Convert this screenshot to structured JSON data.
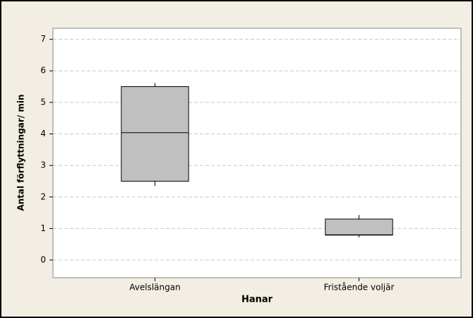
{
  "chart_data": {
    "type": "box",
    "categories": [
      "Avelslängan",
      "Fristående voljär"
    ],
    "boxes": [
      {
        "min": 2.35,
        "q1": 2.5,
        "median": 4.04,
        "q3": 5.5,
        "max": 5.61
      },
      {
        "min": 0.72,
        "q1": 0.79,
        "median": 0.8,
        "q3": 1.3,
        "max": 1.43
      }
    ],
    "color": "#c0c0c0",
    "xlabel": "Hanar",
    "ylabel": "Antal förflyttningar/ min",
    "ylim": [
      -0.56,
      7.35
    ],
    "yticks": [
      0,
      1,
      2,
      3,
      4,
      5,
      6,
      7
    ],
    "grid": true
  }
}
